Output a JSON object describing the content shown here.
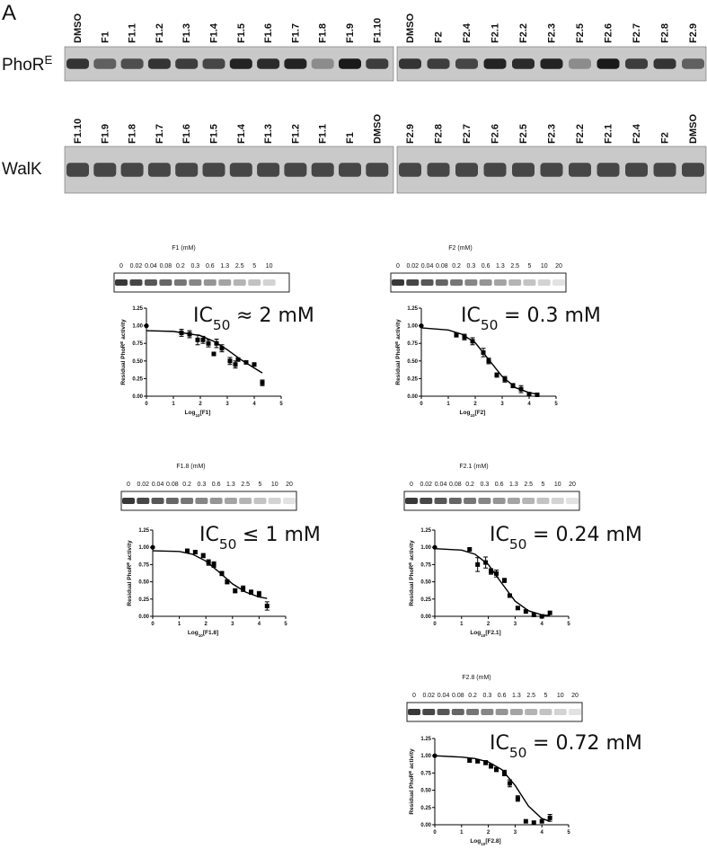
{
  "panel_label": "A",
  "phor_gel": {
    "label": "PhoR",
    "label_sup": "E",
    "lanes_left": [
      "DMSO",
      "F1",
      "F1.1",
      "F1.2",
      "F1.3",
      "F1.4",
      "F1.5",
      "F1.6",
      "F1.7",
      "F1.8",
      "F1.9",
      "F1.10"
    ],
    "lanes_right": [
      "DMSO",
      "F2",
      "F2.4",
      "F2.1",
      "F2.2",
      "F2.3",
      "F2.5",
      "F2.6",
      "F2.7",
      "F2.8",
      "F2.9"
    ]
  },
  "walk_gel": {
    "label": "WalK",
    "lanes_left": [
      "F1.10",
      "F1.9",
      "F1.8",
      "F1.7",
      "F1.6",
      "F1.5",
      "F1.4",
      "F1.3",
      "F1.2",
      "F1.1",
      "F1",
      "DMSO"
    ],
    "lanes_right": [
      "F2.9",
      "F2.8",
      "F2.7",
      "F2.6",
      "F2.5",
      "F2.3",
      "F2.2",
      "F2.1",
      "F2.4",
      "F2",
      "DMSO"
    ]
  },
  "chart_data": [
    {
      "type": "scatter",
      "gel_title": "F1 (mM)",
      "concentrations": [
        "0",
        "0.02",
        "0.04",
        "0.08",
        "0.2",
        "0.3",
        "0.6",
        "1.3",
        "2.5",
        "5",
        "10"
      ],
      "ic50": {
        "main": "IC",
        "sub": "50",
        "tail": "≈ 2 mM"
      },
      "y_label": {
        "main": "Residual PhoR",
        "sup": "E",
        "tail": "activity"
      },
      "x_label": {
        "main": "Log",
        "sub": "10",
        "tail": "[F1]"
      },
      "x": [
        0,
        1.3,
        1.6,
        1.9,
        2.1,
        2.3,
        2.5,
        2.6,
        2.8,
        3.1,
        3.3,
        3.4,
        3.7,
        4.0,
        4.3
      ],
      "values": [
        1.0,
        0.9,
        0.88,
        0.8,
        0.8,
        0.75,
        0.6,
        0.75,
        0.68,
        0.5,
        0.45,
        0.52,
        0.48,
        0.45,
        0.19
      ],
      "errors": [
        0,
        0.05,
        0.05,
        0.07,
        0.05,
        0.05,
        0,
        0.06,
        0.05,
        0.05,
        0.05,
        0,
        0,
        0,
        0.04
      ],
      "fit_x": [
        0,
        1,
        2,
        2.5,
        3,
        3.5,
        4,
        4.3
      ],
      "fit_y": [
        0.93,
        0.92,
        0.86,
        0.78,
        0.66,
        0.52,
        0.4,
        0.33
      ],
      "xlim": [
        0,
        5
      ],
      "xticks": [
        0,
        1,
        2,
        3,
        4,
        5
      ],
      "ylim": [
        0,
        1.25
      ],
      "yticks": [
        {
          "value": 0,
          "label": "0.00"
        },
        {
          "value": 0.25,
          "label": "0.25"
        },
        {
          "value": 0.5,
          "label": "0.50"
        },
        {
          "value": 0.75,
          "label": "0.75"
        },
        {
          "value": 1,
          "label": "1.00"
        },
        {
          "value": 1.25,
          "label": "1.25"
        }
      ]
    },
    {
      "type": "scatter",
      "gel_title": "F2 (mM)",
      "concentrations": [
        "0",
        "0.02",
        "0.04",
        "0.08",
        "0.2",
        "0.3",
        "0.6",
        "1.3",
        "2.5",
        "5",
        "10",
        "20"
      ],
      "ic50": {
        "main": "IC",
        "sub": "50",
        "tail": "= 0.3 mM"
      },
      "y_label": {
        "main": "Residual PhoR",
        "sup": "E",
        "tail": "activity"
      },
      "x_label": {
        "main": "Log",
        "sub": "10",
        "tail": "[F2]"
      },
      "x": [
        0,
        1.3,
        1.6,
        1.9,
        2.3,
        2.5,
        2.8,
        3.1,
        3.4,
        3.7,
        4.0,
        4.3
      ],
      "values": [
        1.0,
        0.87,
        0.84,
        0.78,
        0.62,
        0.5,
        0.3,
        0.24,
        0.15,
        0.1,
        0.03,
        0.02
      ],
      "errors": [
        0,
        0.03,
        0.04,
        0.05,
        0.06,
        0.04,
        0.03,
        0.04,
        0.03,
        0.05,
        0,
        0
      ],
      "fit_x": [
        0,
        1,
        1.5,
        2,
        2.5,
        3,
        3.5,
        4,
        4.3
      ],
      "fit_y": [
        0.97,
        0.94,
        0.88,
        0.76,
        0.52,
        0.28,
        0.12,
        0.05,
        0.03
      ],
      "xlim": [
        0,
        5
      ],
      "xticks": [
        0,
        1,
        2,
        3,
        4,
        5
      ],
      "ylim": [
        0,
        1.25
      ],
      "yticks": [
        {
          "value": 0,
          "label": "0.00"
        },
        {
          "value": 0.25,
          "label": "0.25"
        },
        {
          "value": 0.5,
          "label": "0.50"
        },
        {
          "value": 0.75,
          "label": "0.75"
        },
        {
          "value": 1,
          "label": "1.00"
        },
        {
          "value": 1.25,
          "label": "1.25"
        }
      ]
    },
    {
      "type": "scatter",
      "gel_title": "F1.8 (mM)",
      "concentrations": [
        "0",
        "0.02",
        "0.04",
        "0.08",
        "0.2",
        "0.3",
        "0.6",
        "1.3",
        "2.5",
        "5",
        "10",
        "20"
      ],
      "ic50": {
        "main": "IC",
        "sub": "50",
        "tail": "≤ 1 mM"
      },
      "y_label": {
        "main": "Residual PhoR",
        "sup": "E",
        "tail": "activity"
      },
      "x_label": {
        "main": "Log",
        "sub": "10",
        "tail": "[F1.8]"
      },
      "x": [
        0,
        1.3,
        1.6,
        1.9,
        2.1,
        2.3,
        2.6,
        2.8,
        3.1,
        3.4,
        3.7,
        4.0,
        4.3
      ],
      "values": [
        1.0,
        0.95,
        0.93,
        0.88,
        0.78,
        0.75,
        0.62,
        0.5,
        0.37,
        0.4,
        0.35,
        0.32,
        0.15
      ],
      "errors": [
        0,
        0.02,
        0.02,
        0.03,
        0.04,
        0.04,
        0.03,
        0.03,
        0.03,
        0.04,
        0.03,
        0.04,
        0.06
      ],
      "fit_x": [
        0,
        1,
        1.5,
        2,
        2.5,
        3,
        3.5,
        4,
        4.3
      ],
      "fit_y": [
        0.95,
        0.94,
        0.9,
        0.8,
        0.64,
        0.47,
        0.35,
        0.28,
        0.26
      ],
      "xlim": [
        0,
        5
      ],
      "xticks": [
        0,
        1,
        2,
        3,
        4,
        5
      ],
      "ylim": [
        0,
        1.25
      ],
      "yticks": [
        {
          "value": 0,
          "label": "0.00"
        },
        {
          "value": 0.25,
          "label": "0.25"
        },
        {
          "value": 0.5,
          "label": "0.50"
        },
        {
          "value": 0.75,
          "label": "0.75"
        },
        {
          "value": 1,
          "label": "1.00"
        },
        {
          "value": 1.25,
          "label": "1.25"
        }
      ]
    },
    {
      "type": "scatter",
      "gel_title": "F2.1 (mM)",
      "concentrations": [
        "0",
        "0.02",
        "0.04",
        "0.08",
        "0.2",
        "0.3",
        "0.6",
        "1.3",
        "2.5",
        "5",
        "10",
        "20"
      ],
      "ic50": {
        "main": "IC",
        "sub": "50",
        "tail": "= 0.24 mM"
      },
      "y_label": {
        "main": "Residual PhoR",
        "sup": "E",
        "tail": "activity"
      },
      "x_label": {
        "main": "Log",
        "sub": "10",
        "tail": "[F2.1]"
      },
      "x": [
        0,
        1.3,
        1.6,
        1.9,
        2.1,
        2.3,
        2.6,
        2.8,
        3.1,
        3.4,
        3.7,
        4.0,
        4.3
      ],
      "values": [
        1.0,
        0.97,
        0.75,
        0.78,
        0.65,
        0.62,
        0.52,
        0.3,
        0.12,
        0.07,
        0.02,
        0.0,
        0.05
      ],
      "errors": [
        0,
        0,
        0.1,
        0.08,
        0.04,
        0.05,
        0.03,
        0.02,
        0.02,
        0,
        0,
        0,
        0
      ],
      "fit_x": [
        0,
        1,
        1.5,
        2,
        2.5,
        3,
        3.5,
        4,
        4.3
      ],
      "fit_y": [
        0.98,
        0.96,
        0.9,
        0.75,
        0.48,
        0.22,
        0.08,
        0.02,
        0.01
      ],
      "xlim": [
        0,
        5
      ],
      "xticks": [
        0,
        1,
        2,
        3,
        4,
        5
      ],
      "ylim": [
        0,
        1.25
      ],
      "yticks": [
        {
          "value": 0,
          "label": "0.00"
        },
        {
          "value": 0.25,
          "label": "0.25"
        },
        {
          "value": 0.5,
          "label": "0.50"
        },
        {
          "value": 0.75,
          "label": "0.75"
        },
        {
          "value": 1,
          "label": "1.00"
        },
        {
          "value": 1.25,
          "label": "1.25"
        }
      ]
    },
    {
      "type": "scatter",
      "gel_title": "F2.8 (mM)",
      "concentrations": [
        "0",
        "0.02",
        "0.04",
        "0.08",
        "0.2",
        "0.3",
        "0.6",
        "1.3",
        "2.5",
        "5",
        "10",
        "20"
      ],
      "ic50": {
        "main": "IC",
        "sub": "50",
        "tail": "= 0.72 mM"
      },
      "y_label": {
        "main": "Residual PhoR",
        "sup": "E",
        "tail": "activity"
      },
      "x_label": {
        "main": "Log",
        "sub": "10",
        "tail": "[F2.8]"
      },
      "x": [
        0,
        1.3,
        1.6,
        1.9,
        2.1,
        2.3,
        2.6,
        2.8,
        3.1,
        3.4,
        3.7,
        4.0,
        4.3
      ],
      "values": [
        1.0,
        0.93,
        0.92,
        0.9,
        0.85,
        0.8,
        0.75,
        0.6,
        0.38,
        0.05,
        0.03,
        0.05,
        0.1
      ],
      "errors": [
        0,
        0.02,
        0.02,
        0.03,
        0.03,
        0.03,
        0.04,
        0.05,
        0.04,
        0,
        0,
        0,
        0.05
      ],
      "fit_x": [
        0,
        1,
        1.5,
        2,
        2.5,
        3,
        3.5,
        4,
        4.3
      ],
      "fit_y": [
        1.0,
        0.98,
        0.96,
        0.91,
        0.8,
        0.57,
        0.27,
        0.09,
        0.05
      ],
      "xlim": [
        0,
        5
      ],
      "xticks": [
        0,
        1,
        2,
        3,
        4,
        5
      ],
      "ylim": [
        0,
        1.25
      ],
      "yticks": [
        {
          "value": 0,
          "label": "0.00"
        },
        {
          "value": 0.25,
          "label": "0.25"
        },
        {
          "value": 0.5,
          "label": "0.50"
        },
        {
          "value": 0.75,
          "label": "0.75"
        },
        {
          "value": 1,
          "label": "1.00"
        },
        {
          "value": 1.25,
          "label": "1.25"
        }
      ]
    }
  ]
}
